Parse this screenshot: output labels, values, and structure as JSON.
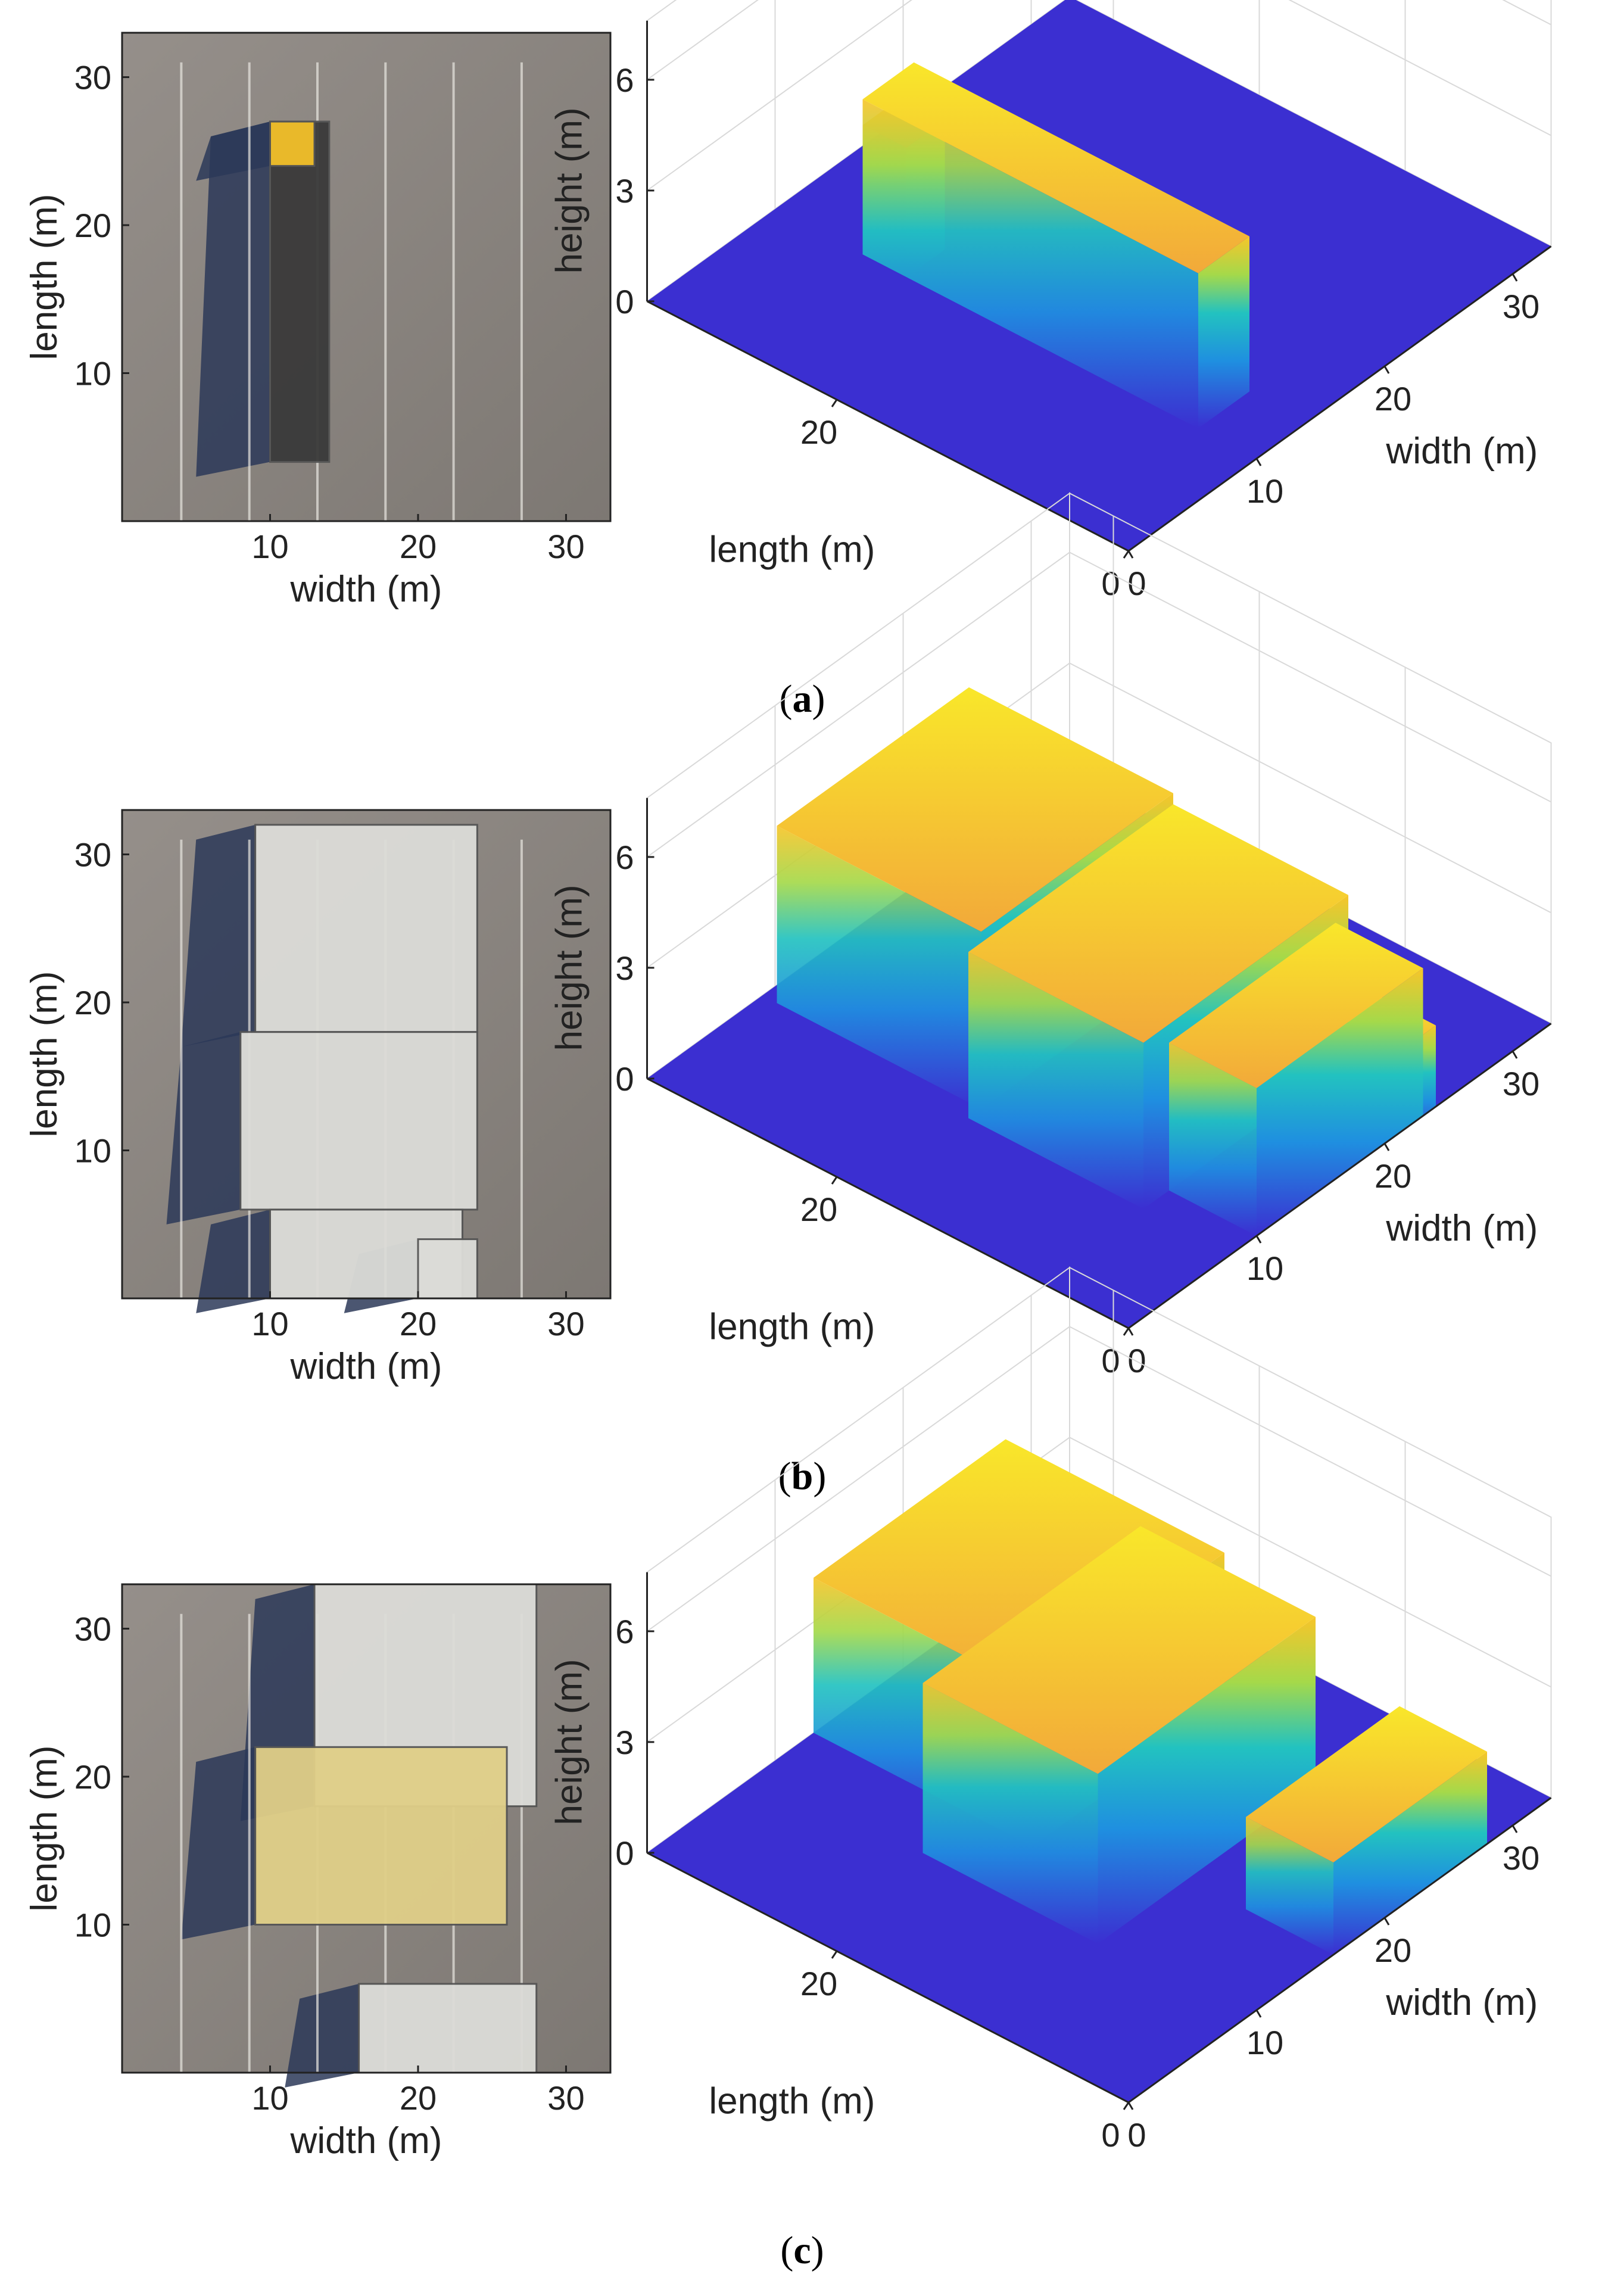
{
  "figure": {
    "panels": [
      {
        "caption_open": "(",
        "caption_letter": "a",
        "caption_close": ")",
        "photo": {
          "xlabel": "width (m)",
          "ylabel": "length (m)",
          "xticks": [
            "10",
            "20",
            "30"
          ],
          "yticks": [
            "10",
            "20",
            "30"
          ]
        },
        "surface": {
          "zlabel": "height (m)",
          "xlabel": "width (m)",
          "ylabel": "length (m)",
          "zticks": [
            "0",
            "3",
            "6"
          ],
          "width_ticks": [
            "0",
            "10",
            "20",
            "30"
          ],
          "length_ticks": [
            "0",
            "20"
          ]
        }
      },
      {
        "caption_open": "(",
        "caption_letter": "b",
        "caption_close": ")",
        "photo": {
          "xlabel": "width (m)",
          "ylabel": "length (m)",
          "xticks": [
            "10",
            "20",
            "30"
          ],
          "yticks": [
            "10",
            "20",
            "30"
          ]
        },
        "surface": {
          "zlabel": "height (m)",
          "xlabel": "width (m)",
          "ylabel": "length (m)",
          "zticks": [
            "0",
            "3",
            "6"
          ],
          "width_ticks": [
            "0",
            "10",
            "20",
            "30"
          ],
          "length_ticks": [
            "0",
            "20"
          ]
        }
      },
      {
        "caption_open": "(",
        "caption_letter": "c",
        "caption_close": ")",
        "photo": {
          "xlabel": "width (m)",
          "ylabel": "length (m)",
          "xticks": [
            "10",
            "20",
            "30"
          ],
          "yticks": [
            "10",
            "20",
            "30"
          ]
        },
        "surface": {
          "zlabel": "height (m)",
          "xlabel": "width (m)",
          "ylabel": "length (m)",
          "zticks": [
            "0",
            "3",
            "6"
          ],
          "width_ticks": [
            "0",
            "10",
            "20",
            "30"
          ],
          "length_ticks": [
            "0",
            "20"
          ]
        }
      }
    ]
  },
  "colors": {
    "surface_low": "#3b2fd1",
    "surface_mid": "#21b3d6",
    "surface_high": "#f7c52a",
    "surface_peak": "#f9e72a",
    "asphalt": "#8a8480",
    "shadow": "#2c3858",
    "trailer_white": "#dcdcd8",
    "trailer_yellow": "#e0cf88",
    "cab_yellow": "#f3c02a"
  },
  "chart_data": [
    {
      "type": "heatmap",
      "title": "",
      "xlabel": "width (m)",
      "ylabel": "length (m)",
      "zlabel": "height (m)",
      "xlim": [
        0,
        33
      ],
      "ylim": [
        0,
        33
      ],
      "zlim": [
        0,
        6
      ],
      "objects": [
        {
          "width_range": [
            10,
            14
          ],
          "length_range": [
            4,
            27
          ],
          "height": 4.2
        },
        {
          "width_range": [
            10,
            13
          ],
          "length_range": [
            24,
            27
          ],
          "height": 3.5
        }
      ]
    },
    {
      "type": "heatmap",
      "title": "",
      "xlabel": "width (m)",
      "ylabel": "length (m)",
      "zlabel": "height (m)",
      "xlim": [
        0,
        33
      ],
      "ylim": [
        0,
        33
      ],
      "zlim": [
        0,
        6
      ],
      "objects": [
        {
          "width_range": [
            9,
            24
          ],
          "length_range": [
            18,
            32
          ],
          "height": 4.8
        },
        {
          "width_range": [
            8,
            24
          ],
          "length_range": [
            6,
            18
          ],
          "height": 4.5
        },
        {
          "width_range": [
            10,
            23
          ],
          "length_range": [
            0,
            6
          ],
          "height": 4.0
        },
        {
          "width_range": [
            20,
            24
          ],
          "length_range": [
            0,
            4
          ],
          "height": 2.2
        }
      ]
    },
    {
      "type": "heatmap",
      "title": "",
      "xlabel": "width (m)",
      "ylabel": "length (m)",
      "zlabel": "height (m)",
      "xlim": [
        0,
        33
      ],
      "ylim": [
        0,
        33
      ],
      "zlim": [
        0,
        6
      ],
      "objects": [
        {
          "width_range": [
            13,
            28
          ],
          "length_range": [
            18,
            33
          ],
          "height": 4.2
        },
        {
          "width_range": [
            9,
            26
          ],
          "length_range": [
            10,
            22
          ],
          "height": 4.6
        },
        {
          "width_range": [
            16,
            28
          ],
          "length_range": [
            0,
            6
          ],
          "height": 2.5
        }
      ]
    }
  ]
}
